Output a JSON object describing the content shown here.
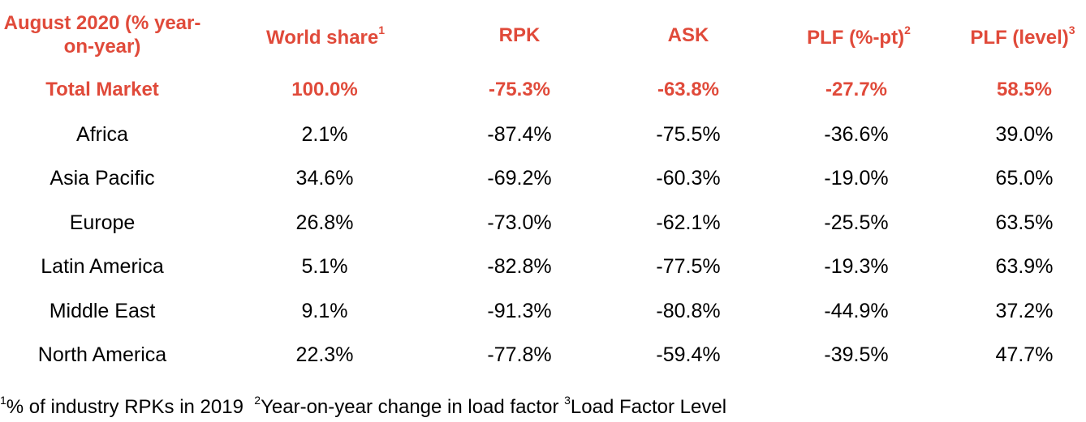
{
  "table": {
    "headers": [
      {
        "label": "August 2020 (% year-on-year)",
        "sup": ""
      },
      {
        "label": "World share",
        "sup": "1"
      },
      {
        "label": "RPK",
        "sup": ""
      },
      {
        "label": "ASK",
        "sup": ""
      },
      {
        "label": "PLF (%-pt)",
        "sup": "2"
      },
      {
        "label": "PLF (level)",
        "sup": "3"
      }
    ],
    "rows": [
      {
        "region": "Total Market",
        "world_share": "100.0%",
        "rpk": "-75.3%",
        "ask": "-63.8%",
        "plf_pt": "-27.7%",
        "plf_level": "58.5%"
      },
      {
        "region": "Africa",
        "world_share": "2.1%",
        "rpk": "-87.4%",
        "ask": "-75.5%",
        "plf_pt": "-36.6%",
        "plf_level": "39.0%"
      },
      {
        "region": "Asia Pacific",
        "world_share": "34.6%",
        "rpk": "-69.2%",
        "ask": "-60.3%",
        "plf_pt": "-19.0%",
        "plf_level": "65.0%"
      },
      {
        "region": "Europe",
        "world_share": "26.8%",
        "rpk": "-73.0%",
        "ask": "-62.1%",
        "plf_pt": "-25.5%",
        "plf_level": "63.5%"
      },
      {
        "region": "Latin America",
        "world_share": "5.1%",
        "rpk": "-82.8%",
        "ask": "-77.5%",
        "plf_pt": "-19.3%",
        "plf_level": "63.9%"
      },
      {
        "region": "Middle East",
        "world_share": "9.1%",
        "rpk": "-91.3%",
        "ask": "-80.8%",
        "plf_pt": "-44.9%",
        "plf_level": "37.2%"
      },
      {
        "region": "North America",
        "world_share": "22.3%",
        "rpk": "-77.8%",
        "ask": "-59.4%",
        "plf_pt": "-39.5%",
        "plf_level": "47.7%"
      }
    ]
  },
  "footnotes": [
    {
      "sup": "1",
      "text": "% of industry RPKs in 2019"
    },
    {
      "sup": "2",
      "text": "Year-on-year change in load factor"
    },
    {
      "sup": "3",
      "text": "Load Factor Level"
    }
  ],
  "colors": {
    "accent": "#e04a3a",
    "text": "#000000",
    "background": "#ffffff"
  }
}
